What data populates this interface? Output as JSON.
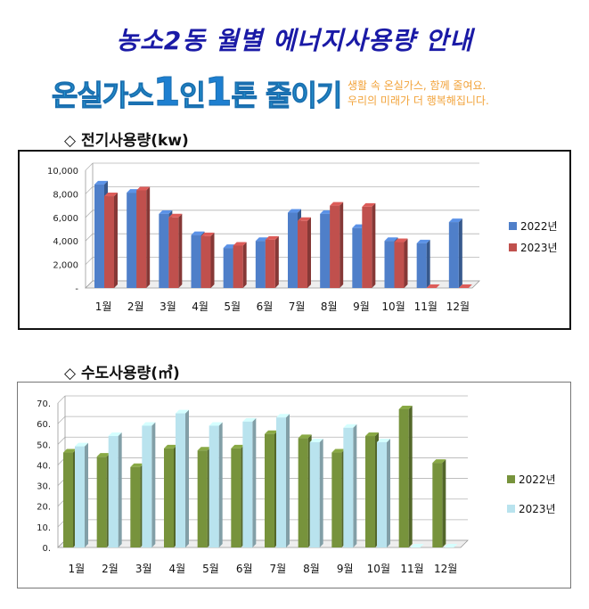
{
  "header": {
    "title": "농소2동 월별 에너지사용량 안내",
    "slogan_part1": "온실가스",
    "slogan_one_a": "1",
    "slogan_in": "인",
    "slogan_one_b": "1",
    "slogan_part2": "톤 줄이기",
    "tagline_line1": "생활 속 온실가스, 함께 줄여요.",
    "tagline_line2": "우리의 미래가 더 행복해집니다."
  },
  "sections": {
    "electricity_title": "◇ 전기사용량(kw)",
    "water_title": "◇ 수도사용량(㎥)"
  },
  "colors": {
    "elec_2022": "#4f7fc9",
    "elec_2023": "#c0504d",
    "water_2022": "#77933c",
    "water_2023": "#b9e3ee"
  },
  "chart_data": [
    {
      "type": "bar",
      "categories": [
        "1월",
        "2월",
        "3월",
        "4월",
        "5월",
        "6월",
        "7월",
        "8월",
        "9월",
        "10월",
        "11월",
        "12월"
      ],
      "series": [
        {
          "name": "2022년",
          "values": [
            8800,
            8100,
            6300,
            4500,
            3400,
            4000,
            6400,
            6300,
            5100,
            4000,
            3800,
            5600
          ]
        },
        {
          "name": "2023년",
          "values": [
            7800,
            8300,
            6000,
            4400,
            3600,
            4100,
            5700,
            7000,
            6900,
            3900,
            0,
            0
          ]
        }
      ],
      "yticks": [
        "-",
        "2,000",
        "4,000",
        "6,000",
        "8,000",
        "10,000"
      ],
      "ylim": [
        0,
        10000
      ],
      "grid": true,
      "legend": "right"
    },
    {
      "type": "bar",
      "categories": [
        "1월",
        "2월",
        "3월",
        "4월",
        "5월",
        "6월",
        "7월",
        "8월",
        "9월",
        "10월",
        "11월",
        "12월"
      ],
      "series": [
        {
          "name": "2022년",
          "values": [
            46,
            44,
            39,
            48,
            47,
            48,
            55,
            53,
            46,
            54,
            67,
            41
          ]
        },
        {
          "name": "2023년",
          "values": [
            49,
            54,
            59,
            65,
            59,
            61,
            63,
            51,
            58,
            51,
            0,
            0
          ]
        }
      ],
      "yticks": [
        "0.",
        "10.",
        "20.",
        "30.",
        "40.",
        "50.",
        "60.",
        "70."
      ],
      "ylim": [
        0,
        70
      ],
      "grid": true,
      "legend": "right"
    }
  ]
}
